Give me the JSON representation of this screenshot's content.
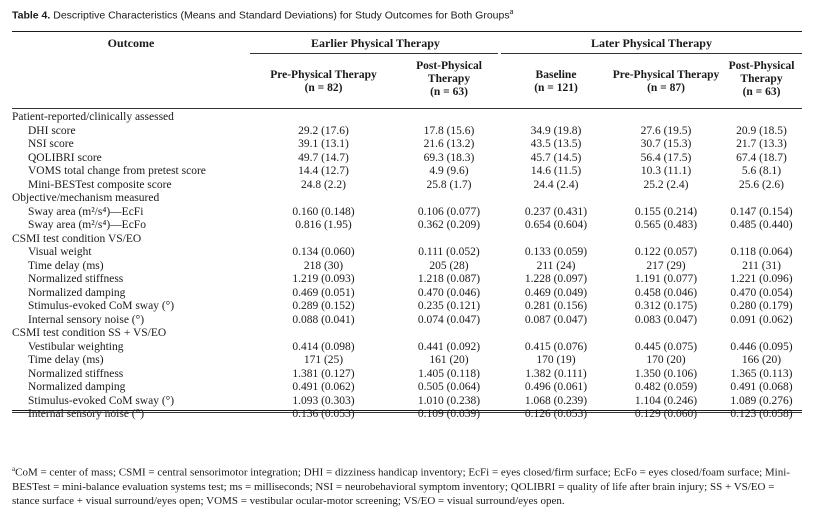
{
  "caption": {
    "label": "Table 4.",
    "text": "Descriptive Characteristics (Means and Standard Deviations) for Study Outcomes for Both Groups",
    "marker": "a"
  },
  "header": {
    "outcome": "Outcome",
    "group1": "Earlier Physical Therapy",
    "group2": "Later Physical Therapy",
    "columns": [
      {
        "line1": "Pre-Physical Therapy",
        "line2": "",
        "n": "(n = 82)"
      },
      {
        "line1": "Post-Physical",
        "line2": "Therapy",
        "n": "(n = 63)"
      },
      {
        "line1": "Baseline",
        "line2": "",
        "n": "(n = 121)"
      },
      {
        "line1": "Pre-Physical Therapy",
        "line2": "",
        "n": "(n = 87)"
      },
      {
        "line1": "Post-Physical",
        "line2": "Therapy",
        "n": "(n = 63)"
      }
    ]
  },
  "rows": [
    {
      "type": "section",
      "label": "Patient-reported/clinically assessed"
    },
    {
      "type": "data",
      "label": "DHI score",
      "values": [
        "29.2 (17.6)",
        "17.8 (15.6)",
        "34.9 (19.8)",
        "27.6 (19.5)",
        "20.9 (18.5)"
      ]
    },
    {
      "type": "data",
      "label": "NSI score",
      "values": [
        "39.1 (13.1)",
        "21.6 (13.2)",
        "43.5 (13.5)",
        "30.7 (15.3)",
        "21.7 (13.3)"
      ]
    },
    {
      "type": "data",
      "label": "QOLIBRI score",
      "values": [
        "49.7 (14.7)",
        "69.3 (18.3)",
        "45.7 (14.5)",
        "56.4 (17.5)",
        "67.4 (18.7)"
      ]
    },
    {
      "type": "data",
      "label": "VOMS total change from pretest score",
      "values": [
        "14.4 (12.7)",
        "4.9 (9.6)",
        "14.6 (11.5)",
        "10.3 (11.1)",
        "5.6 (8.1)"
      ]
    },
    {
      "type": "data",
      "label": "Mini-BESTest composite score",
      "values": [
        "24.8 (2.2)",
        "25.8 (1.7)",
        "24.4 (2.4)",
        "25.2 (2.4)",
        "25.6 (2.6)"
      ]
    },
    {
      "type": "section",
      "label": "Objective/mechanism measured"
    },
    {
      "type": "data",
      "label": "Sway area (m²/s⁴)—EcFi",
      "values": [
        "0.160 (0.148)",
        "0.106 (0.077)",
        "0.237 (0.431)",
        "0.155 (0.214)",
        "0.147 (0.154)"
      ]
    },
    {
      "type": "data",
      "label": "Sway area (m²/s⁴)—EcFo",
      "values": [
        "0.816 (1.95)",
        "0.362 (0.209)",
        "0.654 (0.604)",
        "0.565 (0.483)",
        "0.485 (0.440)"
      ]
    },
    {
      "type": "section",
      "label": "CSMI test condition VS/EO"
    },
    {
      "type": "data",
      "label": "Visual weight",
      "values": [
        "0.134 (0.060)",
        "0.111 (0.052)",
        "0.133 (0.059)",
        "0.122 (0.057)",
        "0.118 (0.064)"
      ]
    },
    {
      "type": "data",
      "label": "Time delay (ms)",
      "values": [
        "218 (30)",
        "205 (28)",
        "211 (24)",
        "217 (29)",
        "211 (31)"
      ]
    },
    {
      "type": "data",
      "label": "Normalized stiffness",
      "values": [
        "1.219 (0.093)",
        "1.218 (0.087)",
        "1.228 (0.097)",
        "1.191 (0.077)",
        "1.221 (0.096)"
      ]
    },
    {
      "type": "data",
      "label": "Normalized damping",
      "values": [
        "0.469 (0.051)",
        "0.470 (0.046)",
        "0.469 (0.049)",
        "0.458 (0.046)",
        "0.470 (0.054)"
      ]
    },
    {
      "type": "data",
      "label": "Stimulus-evoked CoM sway (°)",
      "values": [
        "0.289 (0.152)",
        "0.235 (0.121)",
        "0.281 (0.156)",
        "0.312 (0.175)",
        "0.280 (0.179)"
      ]
    },
    {
      "type": "data",
      "label": "Internal sensory noise (°)",
      "values": [
        "0.088 (0.041)",
        "0.074 (0.047)",
        "0.087 (0.047)",
        "0.083 (0.047)",
        "0.091 (0.062)"
      ]
    },
    {
      "type": "section",
      "label": "CSMI test condition SS + VS/EO"
    },
    {
      "type": "data",
      "label": "Vestibular weighting",
      "values": [
        "0.414 (0.098)",
        "0.441 (0.092)",
        "0.415 (0.076)",
        "0.445 (0.075)",
        "0.446 (0.095)"
      ]
    },
    {
      "type": "data",
      "label": "Time delay (ms)",
      "values": [
        "171 (25)",
        "161 (20)",
        "170 (19)",
        "170 (20)",
        "166 (20)"
      ]
    },
    {
      "type": "data",
      "label": "Normalized stiffness",
      "values": [
        "1.381 (0.127)",
        "1.405 (0.118)",
        "1.382 (0.111)",
        "1.350 (0.106)",
        "1.365 (0.113)"
      ]
    },
    {
      "type": "data",
      "label": "Normalized damping",
      "values": [
        "0.491 (0.062)",
        "0.505 (0.064)",
        "0.496 (0.061)",
        "0.482 (0.059)",
        "0.491 (0.068)"
      ]
    },
    {
      "type": "data",
      "label": "Stimulus-evoked CoM sway (°)",
      "values": [
        "1.093 (0.303)",
        "1.010 (0.238)",
        "1.068 (0.239)",
        "1.104 (0.246)",
        "1.089 (0.276)"
      ]
    },
    {
      "type": "data",
      "label": "Internal sensory noise (°)",
      "values": [
        "0.136 (0.053)",
        "0.109 (0.039)",
        "0.126 (0.053)",
        "0.129 (0.060)",
        "0.123 (0.058)"
      ]
    }
  ],
  "footnote": {
    "marker": "a",
    "text": "CoM = center of mass; CSMI = central sensorimotor integration; DHI = dizziness handicap inventory; EcFi = eyes closed/firm surface; EcFo = eyes closed/foam surface; Mini-BESTest = mini-balance evaluation systems test; ms = milliseconds; NSI = neurobehavioral symptom inventory; QOLIBRI = quality of life after brain injury; SS + VS/EO = stance surface + visual surround/eyes open; VOMS = vestibular ocular-motor screening; VS/EO = visual surround/eyes open."
  }
}
